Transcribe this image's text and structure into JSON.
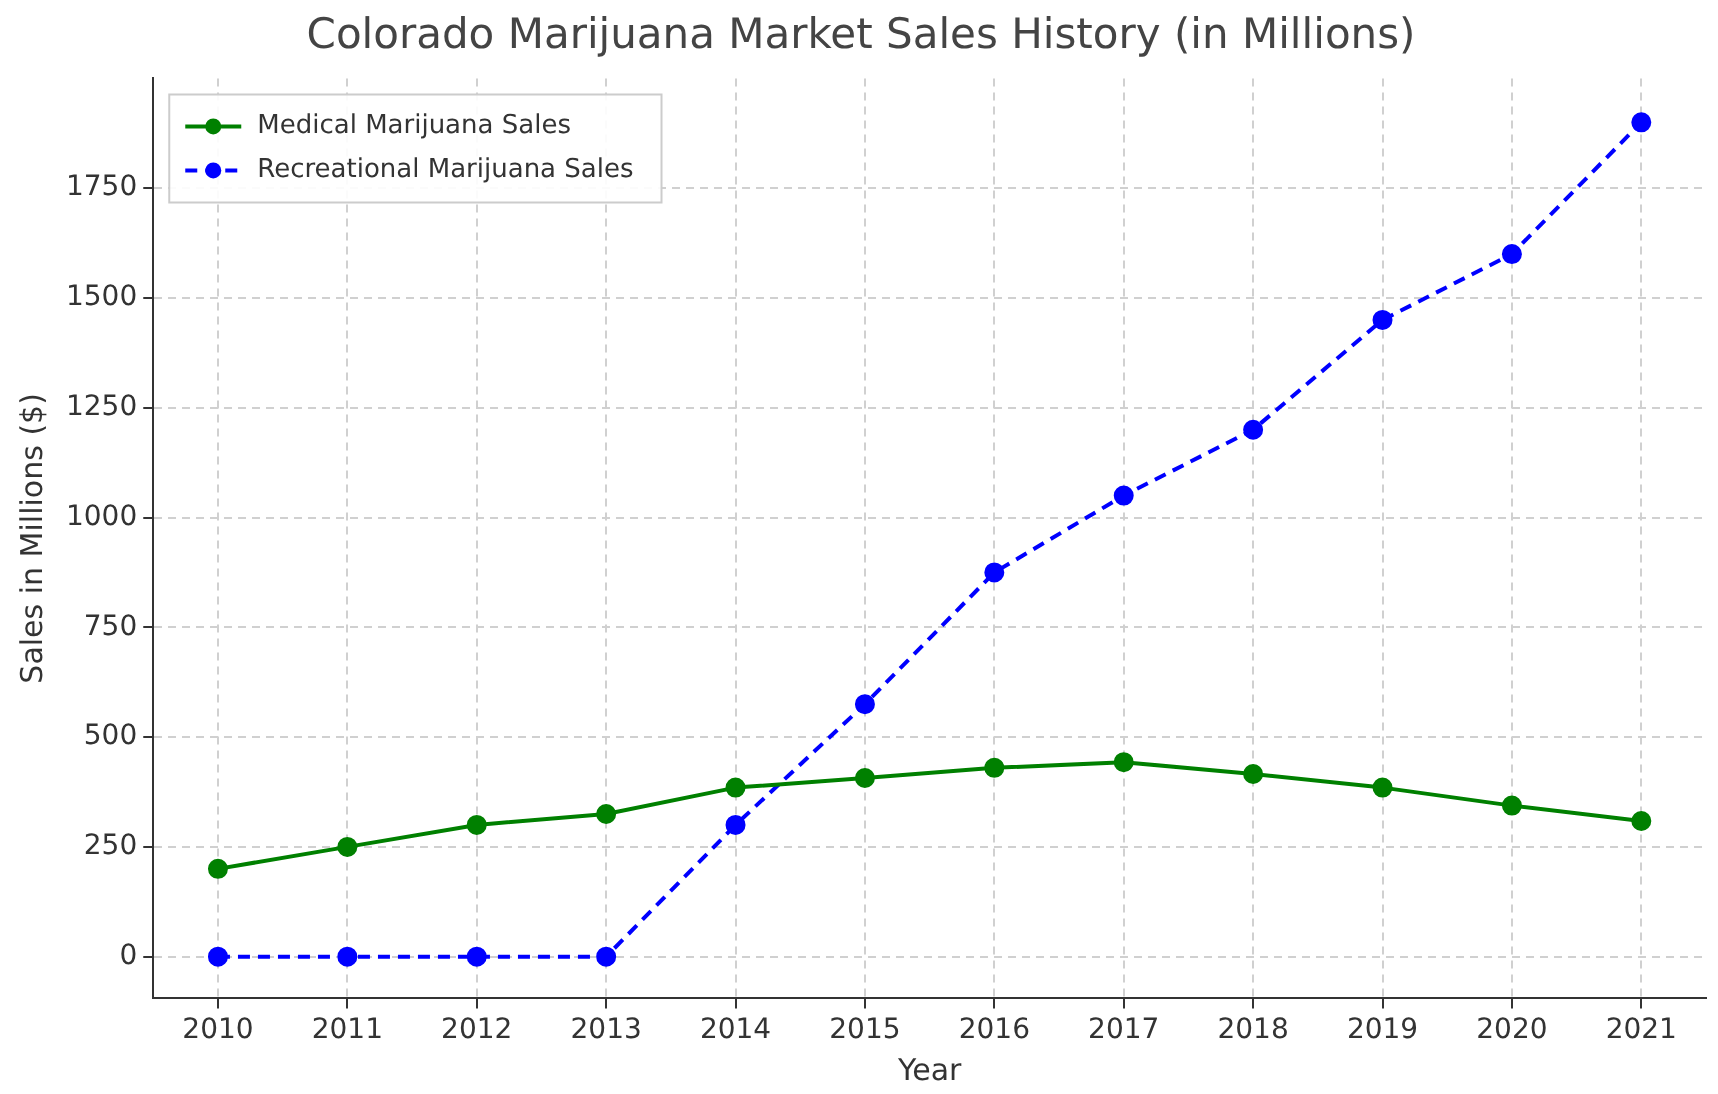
{
  "chart_data": {
    "type": "line",
    "title": "Colorado Marijuana Market Sales History (in Millions)",
    "xlabel": "Year",
    "ylabel": "Sales in Millions ($)",
    "categories": [
      "2010",
      "2011",
      "2012",
      "2013",
      "2014",
      "2015",
      "2016",
      "2017",
      "2018",
      "2019",
      "2020",
      "2021"
    ],
    "series": [
      {
        "name": "Medical Marijuana Sales",
        "color": "#008000",
        "line_style": "solid",
        "values": [
          200,
          250,
          300,
          325,
          385,
          407,
          430,
          443,
          416,
          385,
          344,
          309
        ]
      },
      {
        "name": "Recreational Marijuana Sales",
        "color": "#0000ff",
        "line_style": "dashed",
        "values": [
          0,
          0,
          0,
          0,
          300,
          575,
          875,
          1050,
          1200,
          1450,
          1600,
          1900
        ]
      }
    ],
    "ylim": [
      -95,
      2000
    ],
    "yticks": [
      0,
      250,
      500,
      750,
      1000,
      1250,
      1500,
      1750
    ],
    "grid": true,
    "legend": "top left",
    "marker": "circle"
  }
}
